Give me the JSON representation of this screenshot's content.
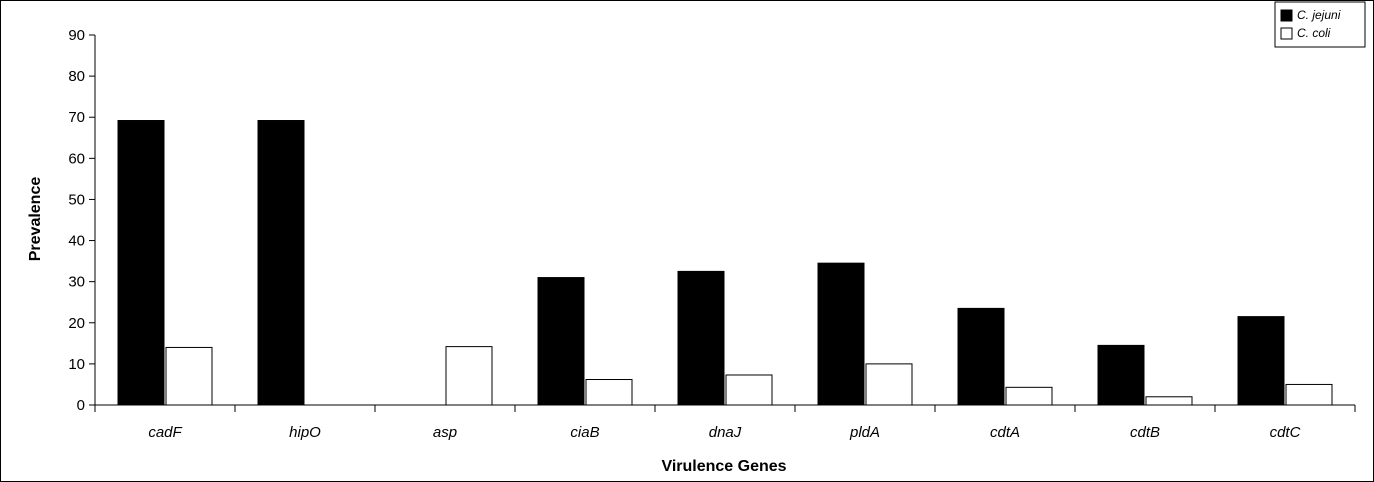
{
  "chart_data": {
    "type": "bar",
    "categories": [
      "cadF",
      "hipO",
      "asp",
      "ciaB",
      "dnaJ",
      "pldA",
      "cdtA",
      "cdtB",
      "cdtC"
    ],
    "series": [
      {
        "name": "C. jejuni",
        "values": [
          69.2,
          69.2,
          0,
          31,
          32.5,
          34.5,
          23.5,
          14.5,
          21.5
        ],
        "color": "#000000"
      },
      {
        "name": "C. coli",
        "values": [
          14,
          0,
          14.2,
          6.2,
          7.3,
          10,
          4.3,
          2,
          5
        ],
        "color": "#ffffff"
      }
    ],
    "title": "",
    "xlabel": "Virulence Genes",
    "ylabel": "Prevalence",
    "ylim": [
      0,
      90
    ],
    "yticks": [
      0,
      10,
      20,
      30,
      40,
      50,
      60,
      70,
      80,
      90
    ],
    "grid": false,
    "legend_position": "top-right"
  }
}
